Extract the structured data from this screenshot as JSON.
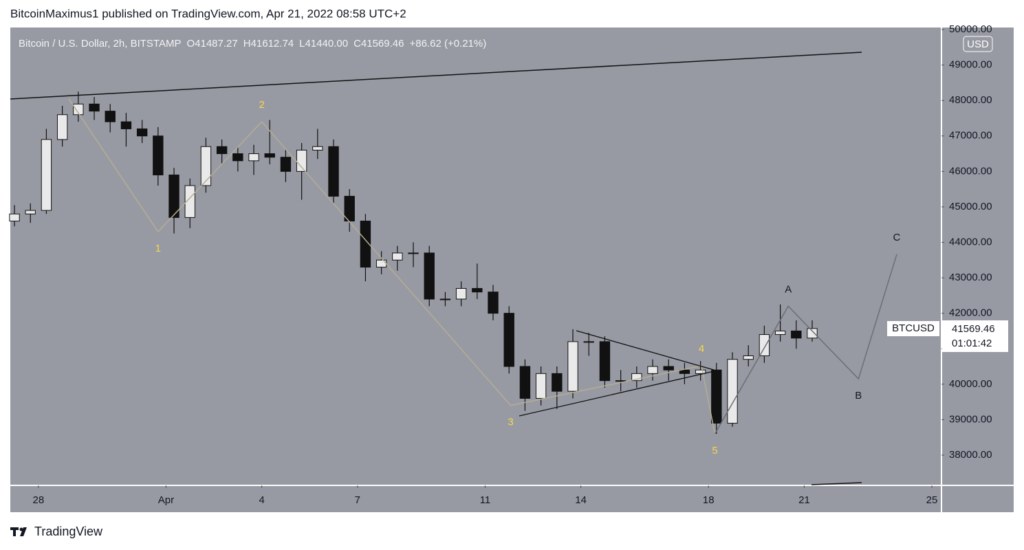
{
  "header": {
    "text": "BitcoinMaximus1 published on TradingView.com, Apr 21, 2022 08:58 UTC+2"
  },
  "footer": {
    "brand": "TradingView"
  },
  "chart_data": {
    "type": "candlestick",
    "title": "Bitcoin / U.S. Dollar, 2h, BITSTAMP",
    "legend": {
      "o_label": "O",
      "open": "41487.27",
      "h_label": "H",
      "high": "41612.74",
      "l_label": "L",
      "low": "41440.00",
      "c_label": "C",
      "close": "41569.46",
      "change": "+86.62 (+0.21%)"
    },
    "currency": "USD",
    "price_tag": {
      "countdown": "01:01:42"
    },
    "xlim": [
      -0.88,
      28.28
    ],
    "ylim": [
      37166,
      50058
    ],
    "xticks": [
      {
        "value": 0,
        "label": "28"
      },
      {
        "value": 4,
        "label": "Apr"
      },
      {
        "value": 7,
        "label": "4"
      },
      {
        "value": 10,
        "label": "7"
      },
      {
        "value": 14,
        "label": "11"
      },
      {
        "value": 17,
        "label": "14"
      },
      {
        "value": 21,
        "label": "18"
      },
      {
        "value": 24,
        "label": "21"
      },
      {
        "value": 28,
        "label": "25"
      }
    ],
    "yticks": [
      {
        "value": 38000,
        "label": "38000.00"
      },
      {
        "value": 39000,
        "label": "39000.00"
      },
      {
        "value": 40000,
        "label": "40000.00"
      },
      {
        "value": 41000,
        "label": "41000.00"
      },
      {
        "value": 42000,
        "label": "42000.00"
      },
      {
        "value": 43000,
        "label": "43000.00"
      },
      {
        "value": 44000,
        "label": "44000.00"
      },
      {
        "value": 45000,
        "label": "45000.00"
      },
      {
        "value": 46000,
        "label": "46000.00"
      },
      {
        "value": 47000,
        "label": "47000.00"
      },
      {
        "value": 48000,
        "label": "48000.00"
      },
      {
        "value": 49000,
        "label": "49000.00"
      },
      {
        "value": 50000,
        "label": "50000.00"
      }
    ],
    "grid": false,
    "series": [
      {
        "name": "BTCUSD",
        "color": "#111111",
        "x": [
          -0.75,
          -0.25,
          0.25,
          0.75,
          1.25,
          1.75,
          2.25,
          2.75,
          3.25,
          3.75,
          4.25,
          4.75,
          5.25,
          5.75,
          6.25,
          6.75,
          7.25,
          7.75,
          8.25,
          8.75,
          9.25,
          9.75,
          10.25,
          10.75,
          11.25,
          11.75,
          12.25,
          12.75,
          13.25,
          13.75,
          14.25,
          14.75,
          15.25,
          15.75,
          16.25,
          16.75,
          17.25,
          17.75,
          18.25,
          18.75,
          19.25,
          19.75,
          20.25,
          20.75,
          21.25,
          21.75,
          22.25,
          22.75,
          23.25,
          23.75,
          24.25
        ],
        "open": [
          44600,
          44800,
          44900,
          46900,
          47600,
          47900,
          47700,
          47400,
          47200,
          47000,
          45900,
          44700,
          45600,
          46700,
          46500,
          46300,
          46500,
          46400,
          46000,
          46600,
          46700,
          45300,
          44600,
          43300,
          43500,
          43700,
          43700,
          42400,
          42400,
          42700,
          42600,
          42000,
          40500,
          39600,
          40300,
          39800,
          41200,
          41200,
          40100,
          40100,
          40300,
          40500,
          40400,
          40300,
          40400,
          38900,
          40700,
          40800,
          41400,
          41500,
          41300
        ],
        "high": [
          45050,
          45100,
          47200,
          47850,
          48250,
          48100,
          47900,
          47650,
          47450,
          47250,
          46100,
          45800,
          46950,
          46900,
          46700,
          46750,
          47450,
          46600,
          46800,
          47200,
          46900,
          45500,
          44800,
          43750,
          43900,
          44000,
          43900,
          42600,
          42900,
          43400,
          42800,
          42200,
          40700,
          40500,
          40500,
          41550,
          41450,
          41350,
          40400,
          40500,
          40700,
          40700,
          40600,
          40650,
          40600,
          40900,
          41100,
          41650,
          42250,
          41800,
          41800
        ],
        "low": [
          44450,
          44550,
          44800,
          46700,
          47400,
          47450,
          47100,
          46700,
          46800,
          45600,
          44250,
          44400,
          45400,
          46200,
          46000,
          45900,
          46200,
          45700,
          45200,
          46350,
          45100,
          44300,
          42900,
          43100,
          43200,
          43300,
          42200,
          42200,
          42200,
          42400,
          41800,
          40300,
          39250,
          39400,
          39300,
          39600,
          40800,
          39900,
          39800,
          39900,
          40100,
          40100,
          40000,
          40100,
          38600,
          38800,
          40500,
          40600,
          41200,
          41000,
          41200
        ],
        "close": [
          44800,
          44900,
          46900,
          47600,
          47900,
          47700,
          47400,
          47200,
          47000,
          45900,
          44700,
          45600,
          46700,
          46500,
          46300,
          46500,
          46400,
          46000,
          46600,
          46700,
          45300,
          44600,
          43300,
          43500,
          43700,
          43700,
          42400,
          42400,
          42700,
          42600,
          42000,
          40500,
          39600,
          40300,
          39800,
          41200,
          41200,
          40100,
          40100,
          40300,
          40500,
          40400,
          40300,
          40400,
          38900,
          40700,
          40800,
          41400,
          41500,
          41300,
          41569.46
        ]
      }
    ],
    "impulse": {
      "color": "#b5ad95",
      "points": [
        {
          "label": null,
          "x": 0.95,
          "y": 48050
        },
        {
          "label": "1",
          "x": 3.75,
          "y": 44300,
          "pos": "below"
        },
        {
          "label": "2",
          "x": 7.0,
          "y": 47400,
          "pos": "above"
        },
        {
          "label": "3",
          "x": 14.8,
          "y": 39400,
          "pos": "below"
        },
        {
          "label": "4",
          "x": 20.78,
          "y": 40520,
          "pos": "above"
        },
        {
          "label": "5",
          "x": 21.2,
          "y": 38600,
          "pos": "below"
        }
      ],
      "label_color": "#f7d84a"
    },
    "correction": {
      "color": "#6b6e75",
      "points": [
        {
          "label": "A",
          "x": 23.5,
          "y": 42200,
          "pos": "above"
        },
        {
          "label": "B",
          "x": 25.7,
          "y": 40150,
          "pos": "below"
        },
        {
          "label": "C",
          "x": 26.9,
          "y": 43660,
          "pos": "above"
        }
      ],
      "label_color": "#131722"
    }
  }
}
